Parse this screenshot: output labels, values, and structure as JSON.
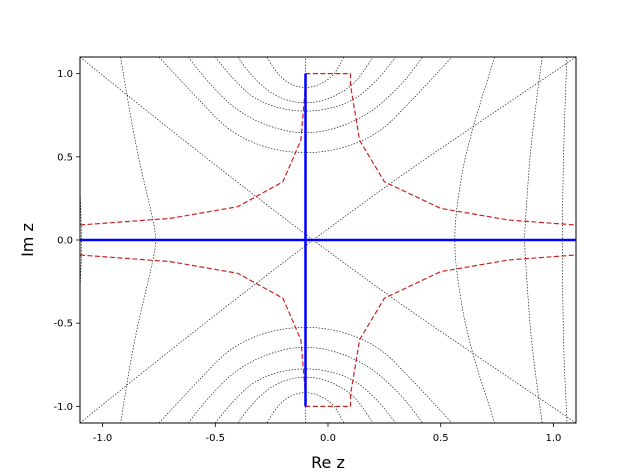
{
  "chart_data": {
    "type": "line",
    "title": "",
    "xlabel": "Re z",
    "ylabel": "Im z",
    "xlim": [
      -1.1,
      1.1
    ],
    "ylim": [
      -1.1,
      1.1
    ],
    "grid": false,
    "xticks": [
      -1.0,
      -0.5,
      0.0,
      0.5,
      1.0
    ],
    "xtick_labels": [
      "-1.0",
      "-0.5",
      "0.0",
      "0.5",
      "1.0"
    ],
    "yticks": [
      -1.0,
      -0.5,
      0.0,
      0.5,
      1.0
    ],
    "ytick_labels": [
      "-1.0",
      "-0.5",
      "0.0",
      "0.5",
      "1.0"
    ],
    "colors": {
      "blue_lines": "#0000ff",
      "red_dashed": "#cc2222",
      "black_dotted": "#000000"
    },
    "series": [
      {
        "style": "blue-solid",
        "x": [
          -1.1,
          1.1
        ],
        "y": [
          0,
          0
        ]
      },
      {
        "style": "blue-solid",
        "x": [
          -0.1,
          -0.1
        ],
        "y": [
          -1.0,
          1.0
        ]
      },
      {
        "style": "red-dashed",
        "x": [
          -1.1,
          -0.7,
          -0.4,
          -0.2,
          -0.12,
          -0.1,
          -0.1,
          0.1,
          0.1,
          0.14,
          0.25,
          0.5,
          0.8,
          1.1
        ],
        "y": [
          0.09,
          0.13,
          0.2,
          0.35,
          0.6,
          0.93,
          1.0,
          1.0,
          0.93,
          0.6,
          0.35,
          0.19,
          0.12,
          0.09
        ]
      },
      {
        "style": "red-dashed",
        "x": [
          -1.1,
          -0.7,
          -0.4,
          -0.2,
          -0.12,
          -0.1,
          -0.1,
          0.1,
          0.1,
          0.14,
          0.25,
          0.5,
          0.8,
          1.1
        ],
        "y": [
          -0.09,
          -0.13,
          -0.2,
          -0.35,
          -0.6,
          -0.93,
          -1.0,
          -1.0,
          -0.93,
          -0.6,
          -0.35,
          -0.19,
          -0.12,
          -0.09
        ]
      },
      {
        "style": "black-dotted",
        "x": [
          -1.1,
          -0.1,
          1.1
        ],
        "y": [
          -1.1,
          0,
          1.1
        ]
      },
      {
        "style": "black-dotted",
        "x": [
          -1.1,
          -0.1,
          1.1
        ],
        "y": [
          1.1,
          0,
          -1.1
        ]
      },
      {
        "style": "black-dotted",
        "x": [
          -0.1,
          -0.1
        ],
        "y": [
          -1.1,
          1.1
        ]
      },
      {
        "style": "black-dotted",
        "x": [
          -0.27,
          -0.22,
          -0.1,
          0.02,
          0.07
        ],
        "y": [
          1.1,
          0.97,
          0.9,
          0.97,
          1.1
        ]
      },
      {
        "style": "black-dotted",
        "x": [
          -0.4,
          -0.3,
          -0.1,
          0.1,
          0.2
        ],
        "y": [
          1.1,
          0.9,
          0.8,
          0.9,
          1.1
        ]
      },
      {
        "style": "black-dotted",
        "x": [
          -0.5,
          -0.42,
          -0.3,
          -0.1,
          0.1,
          0.22,
          0.3
        ],
        "y": [
          1.1,
          0.96,
          0.82,
          0.76,
          0.82,
          0.96,
          1.1
        ]
      },
      {
        "style": "black-dotted",
        "x": [
          -0.62,
          -0.52,
          -0.35,
          -0.1,
          0.15,
          0.32,
          0.42
        ],
        "y": [
          1.1,
          0.92,
          0.72,
          0.62,
          0.72,
          0.92,
          1.1
        ]
      },
      {
        "style": "black-dotted",
        "x": [
          -0.75,
          -0.6,
          -0.4,
          -0.1,
          0.2,
          0.4,
          0.55
        ],
        "y": [
          1.1,
          0.88,
          0.6,
          0.5,
          0.6,
          0.88,
          1.1
        ]
      },
      {
        "style": "black-dotted",
        "x": [
          -0.27,
          -0.22,
          -0.1,
          0.02,
          0.07
        ],
        "y": [
          -1.1,
          -0.97,
          -0.9,
          -0.97,
          -1.1
        ]
      },
      {
        "style": "black-dotted",
        "x": [
          -0.4,
          -0.3,
          -0.1,
          0.1,
          0.2
        ],
        "y": [
          -1.1,
          -0.9,
          -0.8,
          -0.9,
          -1.1
        ]
      },
      {
        "style": "black-dotted",
        "x": [
          -0.5,
          -0.42,
          -0.3,
          -0.1,
          0.1,
          0.22,
          0.3
        ],
        "y": [
          -1.1,
          -0.96,
          -0.82,
          -0.76,
          -0.82,
          -0.96,
          -1.1
        ]
      },
      {
        "style": "black-dotted",
        "x": [
          -0.62,
          -0.52,
          -0.35,
          -0.1,
          0.15,
          0.32,
          0.42
        ],
        "y": [
          -1.1,
          -0.92,
          -0.72,
          -0.62,
          -0.72,
          -0.92,
          -1.1
        ]
      },
      {
        "style": "black-dotted",
        "x": [
          -0.75,
          -0.6,
          -0.4,
          -0.1,
          0.2,
          0.4,
          0.55
        ],
        "y": [
          -1.1,
          -0.88,
          -0.6,
          -0.5,
          -0.6,
          -0.88,
          -1.1
        ]
      },
      {
        "style": "black-dotted",
        "x": [
          -0.92,
          -0.86,
          -0.78,
          -0.76,
          -0.78,
          -0.86,
          -0.92
        ],
        "y": [
          1.1,
          0.6,
          0.15,
          0,
          -0.15,
          -0.6,
          -1.1
        ]
      },
      {
        "style": "black-dotted",
        "x": [
          -1.1,
          -1.09,
          -1.1
        ],
        "y": [
          0.3,
          0,
          -0.3
        ]
      },
      {
        "style": "black-dotted",
        "x": [
          0.74,
          0.62,
          0.57,
          0.56,
          0.57,
          0.62,
          0.74
        ],
        "y": [
          1.1,
          0.6,
          0.2,
          0,
          -0.2,
          -0.6,
          -1.1
        ]
      },
      {
        "style": "black-dotted",
        "x": [
          0.95,
          0.9,
          0.88,
          0.87,
          0.88,
          0.9,
          0.95
        ],
        "y": [
          1.1,
          0.6,
          0.2,
          0,
          -0.2,
          -0.6,
          -1.1
        ]
      },
      {
        "style": "black-dotted",
        "x": [
          1.06,
          1.04,
          1.04,
          1.06
        ],
        "y": [
          1.1,
          0.5,
          -0.5,
          -1.1
        ]
      }
    ]
  }
}
